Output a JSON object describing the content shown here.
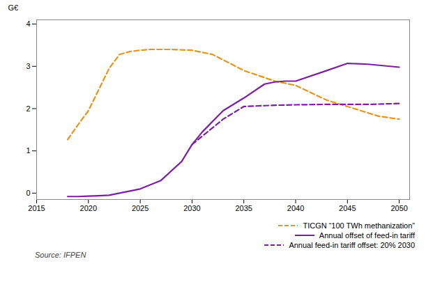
{
  "chart_data": {
    "type": "line",
    "ylabel": "G€",
    "annotations": [
      "Source: IFPEN"
    ],
    "xlim": [
      2015,
      2051
    ],
    "ylim": [
      -0.15,
      4.1
    ],
    "xticks": [
      2015,
      2020,
      2025,
      2030,
      2035,
      2040,
      2045,
      2050
    ],
    "yticks": [
      0,
      1,
      2,
      3,
      4
    ],
    "grid": false,
    "legend": "lower right",
    "series": [
      {
        "name": "TICGN “100 TWh methanization”",
        "color": "#E8941A",
        "line_style": "dashed",
        "x": [
          2018,
          2019,
          2020,
          2022,
          2023,
          2024,
          2025,
          2026,
          2027,
          2028,
          2030,
          2032,
          2035,
          2038,
          2040,
          2043,
          2045,
          2048,
          2050
        ],
        "values": [
          1.27,
          1.62,
          1.95,
          2.95,
          3.28,
          3.35,
          3.38,
          3.4,
          3.4,
          3.4,
          3.38,
          3.28,
          2.9,
          2.65,
          2.55,
          2.2,
          2.05,
          1.82,
          1.75
        ]
      },
      {
        "name": "Annual offset of feed-in tariff",
        "color": "#7B1FA2",
        "line_style": "solid",
        "x": [
          2018,
          2019,
          2020,
          2021,
          2022,
          2023,
          2024,
          2025,
          2027,
          2029,
          2030,
          2031,
          2033,
          2035,
          2037,
          2038,
          2039,
          2040,
          2043,
          2045,
          2047,
          2050
        ],
        "values": [
          -0.08,
          -0.08,
          -0.07,
          -0.06,
          -0.05,
          0.0,
          0.05,
          0.1,
          0.3,
          0.75,
          1.15,
          1.45,
          1.95,
          2.25,
          2.58,
          2.63,
          2.65,
          2.65,
          2.9,
          3.07,
          3.05,
          2.98
        ]
      },
      {
        "name": "Annual feed-in tariff offset: 20% 2030",
        "color": "#7B1FA2",
        "line_style": "dashed",
        "x": [
          2030,
          2031,
          2033,
          2035,
          2037,
          2038,
          2040,
          2043,
          2045,
          2047,
          2050
        ],
        "values": [
          1.15,
          1.35,
          1.75,
          2.05,
          2.07,
          2.08,
          2.09,
          2.1,
          2.1,
          2.1,
          2.12
        ]
      }
    ]
  }
}
